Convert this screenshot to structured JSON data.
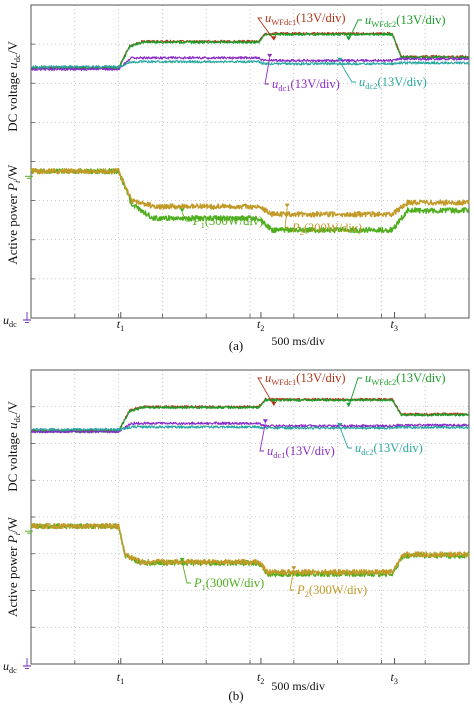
{
  "colors": {
    "frame": "#555555",
    "grid": "#9a9a9a",
    "uWFdc1": "#b5361a",
    "uWFdc2": "#1a9e2a",
    "udc1": "#8a2cc8",
    "udc2": "#2aa7a0",
    "P1": "#4fae1e",
    "P2": "#c29a28",
    "ground": "#7a3fbf"
  },
  "chart_data": [
    {
      "type": "line",
      "panel_label": "(a)",
      "ylabel_top": "DC voltage u_dc/V",
      "ylabel_bottom": "Active power P_i/W",
      "xlabel": "500 ms/div",
      "ground_label": "u_dc",
      "time_markers": [
        "t1",
        "t2",
        "t3"
      ],
      "x_range_div": [
        0,
        10
      ],
      "y_range_div": [
        0,
        8
      ],
      "marker_x_div": [
        2.05,
        5.25,
        8.3
      ],
      "series": [
        {
          "name": "uWFdc1(13V/div)",
          "color_key": "uWFdc1",
          "x": [
            0,
            2.0,
            2.25,
            2.55,
            5.2,
            5.35,
            8.25,
            8.45,
            10
          ],
          "y": [
            6.4,
            6.4,
            6.95,
            7.07,
            7.07,
            7.27,
            7.27,
            6.68,
            6.68
          ]
        },
        {
          "name": "uWFdc2(13V/div)",
          "color_key": "uWFdc2",
          "x": [
            0,
            2.0,
            2.25,
            2.55,
            5.2,
            5.35,
            8.25,
            8.45,
            10
          ],
          "y": [
            6.38,
            6.38,
            6.93,
            7.05,
            7.05,
            7.25,
            7.25,
            6.66,
            6.66
          ]
        },
        {
          "name": "udc1(13V/div)",
          "color_key": "udc1",
          "x": [
            0,
            2.0,
            2.3,
            5.2,
            5.3,
            8.25,
            8.4,
            10
          ],
          "y": [
            6.36,
            6.36,
            6.65,
            6.65,
            6.58,
            6.58,
            6.62,
            6.62
          ]
        },
        {
          "name": "udc2(13V/div)",
          "color_key": "udc2",
          "x": [
            0,
            2.0,
            2.3,
            5.2,
            5.3,
            8.25,
            8.4,
            10
          ],
          "y": [
            6.42,
            6.42,
            6.55,
            6.55,
            6.5,
            6.5,
            6.52,
            6.52
          ]
        },
        {
          "name": "P1(300W/div)",
          "color_key": "P1",
          "x": [
            0,
            2.0,
            2.3,
            2.8,
            5.2,
            5.5,
            8.25,
            8.6,
            10
          ],
          "y": [
            3.75,
            3.75,
            2.9,
            2.55,
            2.55,
            2.25,
            2.25,
            2.75,
            2.75
          ]
        },
        {
          "name": "P2(300W/div)",
          "color_key": "P2",
          "x": [
            0,
            2.0,
            2.3,
            2.8,
            5.2,
            5.5,
            8.25,
            8.6,
            10
          ],
          "y": [
            3.75,
            3.75,
            3.0,
            2.85,
            2.85,
            2.65,
            2.65,
            2.95,
            2.95
          ]
        }
      ],
      "annotations": [
        {
          "text": "u_WFdc1(13V/div)",
          "color_key": "uWFdc1"
        },
        {
          "text": "u_WFdc2(13V/div)",
          "color_key": "uWFdc2"
        },
        {
          "text": "u_dc1(13V/div)",
          "color_key": "udc1"
        },
        {
          "text": "u_dc2(13V/div)",
          "color_key": "udc2"
        },
        {
          "text": "P_1(300W/div)",
          "color_key": "P1"
        },
        {
          "text": "P_2(300W/div)",
          "color_key": "P2"
        }
      ]
    },
    {
      "type": "line",
      "panel_label": "(b)",
      "ylabel_top": "DC voltage u_dc/V",
      "ylabel_bottom": "Active power P_i/W",
      "xlabel": "500 ms/div",
      "ground_label": "u_dc",
      "time_markers": [
        "t1",
        "t2",
        "t3"
      ],
      "x_range_div": [
        0,
        10
      ],
      "y_range_div": [
        0,
        8
      ],
      "marker_x_div": [
        2.05,
        5.25,
        8.3
      ],
      "series": [
        {
          "name": "uWFdc1(13V/div)",
          "color_key": "uWFdc1",
          "x": [
            0,
            2.0,
            2.25,
            2.55,
            5.2,
            5.35,
            8.25,
            8.45,
            10
          ],
          "y": [
            6.35,
            6.35,
            6.9,
            7.0,
            7.0,
            7.2,
            7.2,
            6.8,
            6.8
          ]
        },
        {
          "name": "uWFdc2(13V/div)",
          "color_key": "uWFdc2",
          "x": [
            0,
            2.0,
            2.25,
            2.55,
            5.2,
            5.35,
            8.25,
            8.45,
            10
          ],
          "y": [
            6.33,
            6.33,
            6.88,
            6.98,
            6.98,
            7.18,
            7.18,
            6.78,
            6.78
          ]
        },
        {
          "name": "udc1(13V/div)",
          "color_key": "udc1",
          "x": [
            0,
            2.0,
            2.3,
            5.2,
            5.3,
            8.25,
            8.4,
            10
          ],
          "y": [
            6.32,
            6.32,
            6.55,
            6.55,
            6.48,
            6.48,
            6.5,
            6.5
          ]
        },
        {
          "name": "udc2(13V/div)",
          "color_key": "udc2",
          "x": [
            0,
            2.0,
            2.3,
            5.2,
            5.3,
            8.25,
            8.4,
            10
          ],
          "y": [
            6.38,
            6.38,
            6.45,
            6.45,
            6.42,
            6.42,
            6.44,
            6.44
          ]
        },
        {
          "name": "P1(300W/div)",
          "color_key": "P1",
          "x": [
            0,
            2.0,
            2.15,
            2.5,
            5.2,
            5.4,
            8.25,
            8.5,
            10
          ],
          "y": [
            3.75,
            3.75,
            2.95,
            2.75,
            2.75,
            2.45,
            2.45,
            2.95,
            2.95
          ]
        },
        {
          "name": "P2(300W/div)",
          "color_key": "P2",
          "x": [
            0,
            2.0,
            2.15,
            2.5,
            5.2,
            5.4,
            8.25,
            8.5,
            10
          ],
          "y": [
            3.75,
            3.75,
            2.97,
            2.78,
            2.78,
            2.5,
            2.5,
            2.98,
            2.98
          ]
        }
      ],
      "annotations": [
        {
          "text": "u_WFdc1(13V/div)",
          "color_key": "uWFdc1"
        },
        {
          "text": "u_WFdc2(13V/div)",
          "color_key": "uWFdc2"
        },
        {
          "text": "u_dc1(13V/div)",
          "color_key": "udc1"
        },
        {
          "text": "u_dc2(13V/div)",
          "color_key": "udc2"
        },
        {
          "text": "P_1(300W/div)",
          "color_key": "P1"
        },
        {
          "text": "P_2(300W/div)",
          "color_key": "P2"
        }
      ]
    }
  ]
}
